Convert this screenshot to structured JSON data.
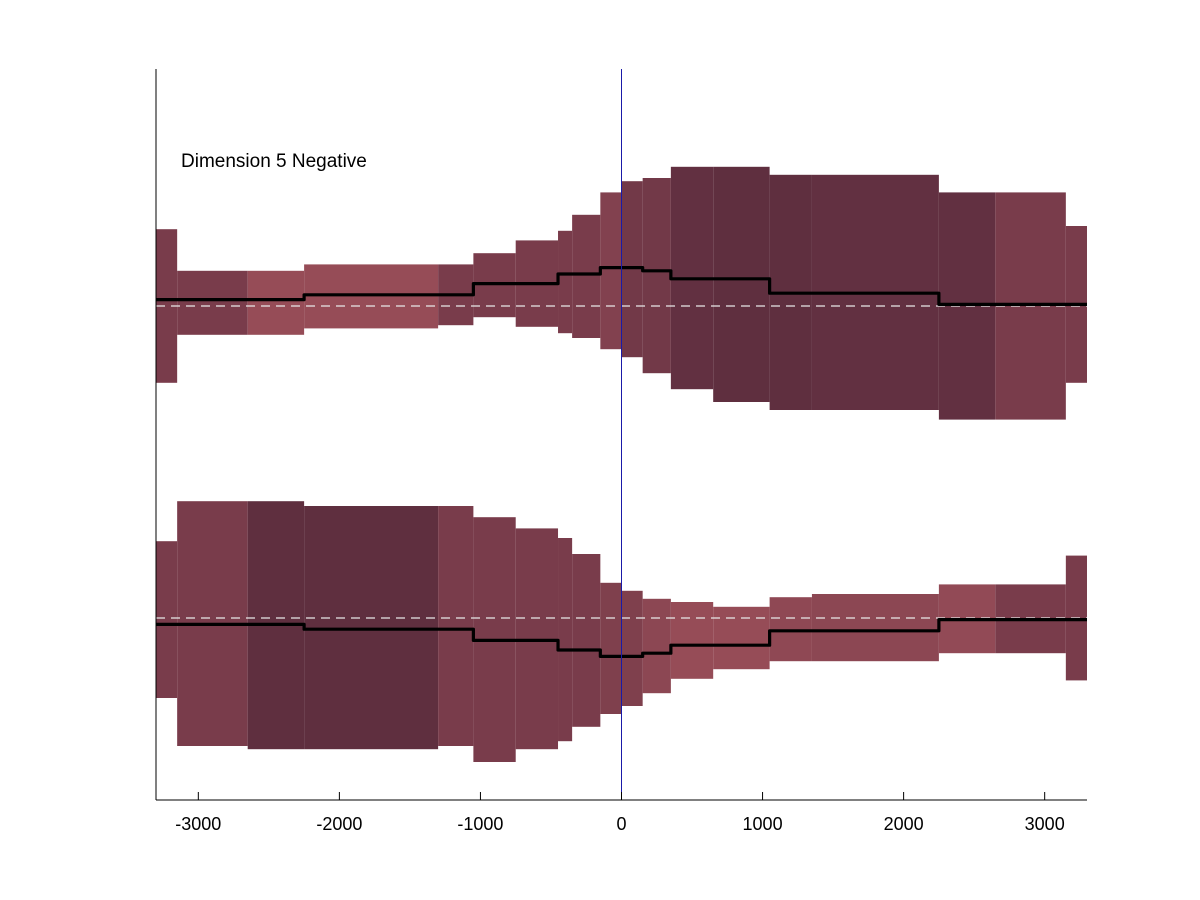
{
  "chart_data": {
    "type": "area",
    "title": "Dimension 5 Negative",
    "xlabel": "",
    "ylabel": "",
    "xlim": [
      -3300,
      3300
    ],
    "x_ticks": [
      -3000,
      -2000,
      -1000,
      0,
      1000,
      2000,
      3000
    ],
    "x_tick_labels": [
      "-3000",
      "-2000",
      "-1000",
      "0",
      "1000",
      "2000",
      "3000"
    ],
    "vertical_marker_x": 0,
    "grid": false,
    "colors": {
      "marker": "#1a1aa8",
      "mean_line": "#000000",
      "baseline": "#e8e8e8",
      "band_dark": "#5c2d3e",
      "band_light": "#9c4f5a"
    },
    "bands": [
      {
        "name": "upper",
        "baseline": 0,
        "segments": [
          {
            "x0": -3300,
            "x1": -3150,
            "lo": -0.48,
            "hi": 0.48,
            "shade": 0.45,
            "mean": 0.04
          },
          {
            "x0": -3150,
            "x1": -2650,
            "lo": -0.18,
            "hi": 0.22,
            "shade": 0.45,
            "mean": 0.04
          },
          {
            "x0": -2650,
            "x1": -2250,
            "lo": -0.18,
            "hi": 0.22,
            "shade": 0.9,
            "mean": 0.04
          },
          {
            "x0": -2250,
            "x1": -1300,
            "lo": -0.14,
            "hi": 0.26,
            "shade": 0.9,
            "mean": 0.07
          },
          {
            "x0": -1300,
            "x1": -1050,
            "lo": -0.12,
            "hi": 0.26,
            "shade": 0.45,
            "mean": 0.07
          },
          {
            "x0": -1050,
            "x1": -750,
            "lo": -0.07,
            "hi": 0.33,
            "shade": 0.45,
            "mean": 0.14
          },
          {
            "x0": -750,
            "x1": -450,
            "lo": -0.13,
            "hi": 0.41,
            "shade": 0.45,
            "mean": 0.14
          },
          {
            "x0": -450,
            "x1": -350,
            "lo": -0.17,
            "hi": 0.47,
            "shade": 0.45,
            "mean": 0.2
          },
          {
            "x0": -350,
            "x1": -150,
            "lo": -0.2,
            "hi": 0.57,
            "shade": 0.45,
            "mean": 0.2
          },
          {
            "x0": -150,
            "x1": 0,
            "lo": -0.27,
            "hi": 0.71,
            "shade": 0.6,
            "mean": 0.24
          },
          {
            "x0": 0,
            "x1": 150,
            "lo": -0.32,
            "hi": 0.78,
            "shade": 0.35,
            "mean": 0.24
          },
          {
            "x0": 150,
            "x1": 350,
            "lo": -0.42,
            "hi": 0.8,
            "shade": 0.35,
            "mean": 0.22
          },
          {
            "x0": 350,
            "x1": 650,
            "lo": -0.52,
            "hi": 0.87,
            "shade": 0.1,
            "mean": 0.17
          },
          {
            "x0": 650,
            "x1": 1050,
            "lo": -0.6,
            "hi": 0.87,
            "shade": 0.05,
            "mean": 0.17
          },
          {
            "x0": 1050,
            "x1": 1350,
            "lo": -0.65,
            "hi": 0.82,
            "shade": 0.05,
            "mean": 0.08
          },
          {
            "x0": 1350,
            "x1": 2250,
            "lo": -0.65,
            "hi": 0.82,
            "shade": 0.1,
            "mean": 0.08
          },
          {
            "x0": 2250,
            "x1": 2650,
            "lo": -0.71,
            "hi": 0.71,
            "shade": 0.1,
            "mean": 0.01
          },
          {
            "x0": 2650,
            "x1": 3150,
            "lo": -0.71,
            "hi": 0.71,
            "shade": 0.45,
            "mean": 0.01
          },
          {
            "x0": 3150,
            "x1": 3300,
            "lo": -0.48,
            "hi": 0.5,
            "shade": 0.45,
            "mean": 0.01
          }
        ]
      },
      {
        "name": "lower",
        "baseline": 0,
        "segments": [
          {
            "x0": -3300,
            "x1": -3150,
            "lo": -0.5,
            "hi": 0.48,
            "shade": 0.45,
            "mean": -0.04
          },
          {
            "x0": -3150,
            "x1": -2650,
            "lo": -0.8,
            "hi": 0.73,
            "shade": 0.45,
            "mean": -0.04
          },
          {
            "x0": -2650,
            "x1": -2250,
            "lo": -0.82,
            "hi": 0.73,
            "shade": 0.05,
            "mean": -0.04
          },
          {
            "x0": -2250,
            "x1": -1300,
            "lo": -0.82,
            "hi": 0.7,
            "shade": 0.05,
            "mean": -0.07
          },
          {
            "x0": -1300,
            "x1": -1050,
            "lo": -0.8,
            "hi": 0.7,
            "shade": 0.45,
            "mean": -0.07
          },
          {
            "x0": -1050,
            "x1": -750,
            "lo": -0.9,
            "hi": 0.63,
            "shade": 0.45,
            "mean": -0.14
          },
          {
            "x0": -750,
            "x1": -450,
            "lo": -0.82,
            "hi": 0.56,
            "shade": 0.45,
            "mean": -0.14
          },
          {
            "x0": -450,
            "x1": -350,
            "lo": -0.77,
            "hi": 0.5,
            "shade": 0.45,
            "mean": -0.2
          },
          {
            "x0": -350,
            "x1": -150,
            "lo": -0.68,
            "hi": 0.4,
            "shade": 0.45,
            "mean": -0.2
          },
          {
            "x0": -150,
            "x1": 0,
            "lo": -0.6,
            "hi": 0.22,
            "shade": 0.55,
            "mean": -0.24
          },
          {
            "x0": 0,
            "x1": 150,
            "lo": -0.55,
            "hi": 0.17,
            "shade": 0.55,
            "mean": -0.24
          },
          {
            "x0": 150,
            "x1": 350,
            "lo": -0.47,
            "hi": 0.12,
            "shade": 0.75,
            "mean": -0.22
          },
          {
            "x0": 350,
            "x1": 650,
            "lo": -0.38,
            "hi": 0.1,
            "shade": 0.9,
            "mean": -0.17
          },
          {
            "x0": 650,
            "x1": 1050,
            "lo": -0.32,
            "hi": 0.07,
            "shade": 0.9,
            "mean": -0.17
          },
          {
            "x0": 1050,
            "x1": 1350,
            "lo": -0.27,
            "hi": 0.13,
            "shade": 0.8,
            "mean": -0.08
          },
          {
            "x0": 1350,
            "x1": 2250,
            "lo": -0.27,
            "hi": 0.15,
            "shade": 0.75,
            "mean": -0.08
          },
          {
            "x0": 2250,
            "x1": 2650,
            "lo": -0.22,
            "hi": 0.21,
            "shade": 0.85,
            "mean": -0.01
          },
          {
            "x0": 2650,
            "x1": 3150,
            "lo": -0.22,
            "hi": 0.21,
            "shade": 0.45,
            "mean": -0.01
          },
          {
            "x0": 3150,
            "x1": 3300,
            "lo": -0.39,
            "hi": 0.39,
            "shade": 0.45,
            "mean": -0.01
          }
        ]
      }
    ]
  }
}
